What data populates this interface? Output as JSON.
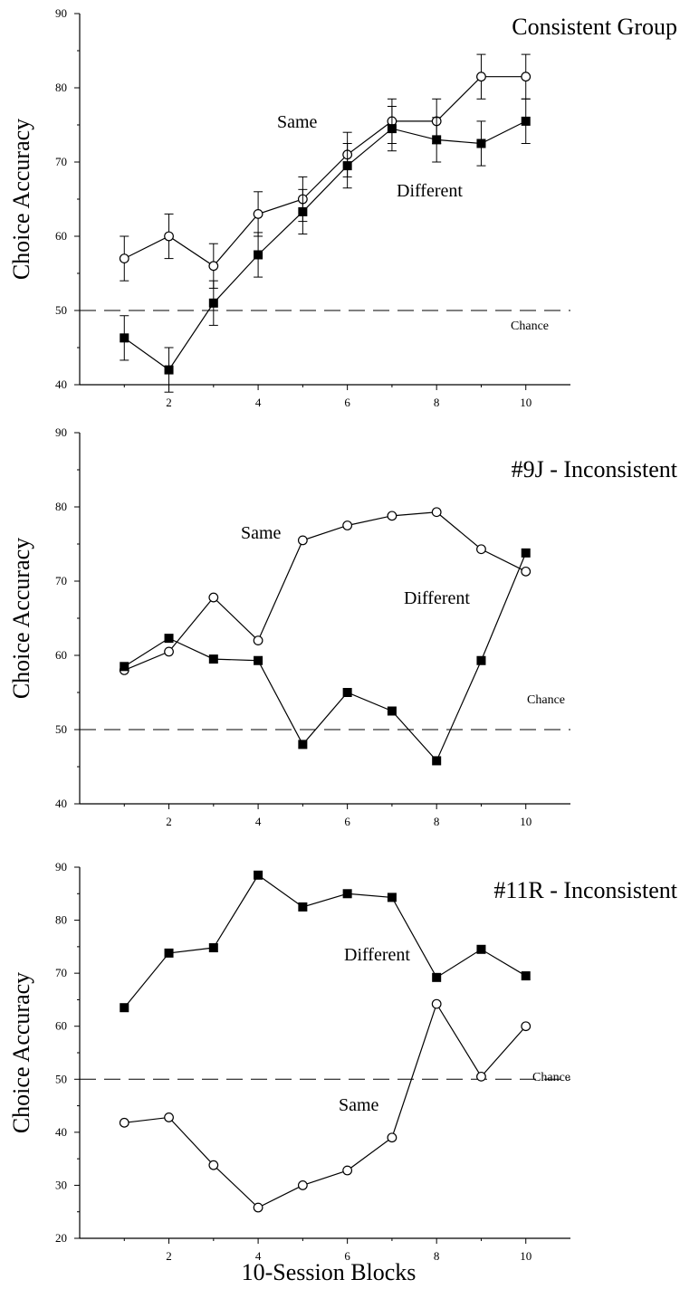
{
  "chart_data": [
    {
      "type": "line",
      "title": "Consistent Group",
      "ylabel": "Choice Accuracy",
      "ylim": [
        40,
        90
      ],
      "yticks": [
        40,
        50,
        60,
        70,
        80,
        90
      ],
      "xlim": [
        0,
        11
      ],
      "xticks": [
        2,
        4,
        6,
        8,
        10
      ],
      "chance": {
        "value": 50,
        "label": "Chance"
      },
      "series": [
        {
          "name": "Same",
          "marker": "open-circle",
          "x": [
            1,
            2,
            3,
            4,
            5,
            6,
            7,
            8,
            9,
            10
          ],
          "y": [
            57,
            60,
            56,
            63,
            65,
            71,
            75.5,
            75.5,
            81.5,
            81.5
          ],
          "err": [
            3,
            3,
            3,
            3,
            3,
            3,
            3,
            3,
            3,
            3
          ]
        },
        {
          "name": "Different",
          "marker": "filled-square",
          "x": [
            1,
            2,
            3,
            4,
            5,
            6,
            7,
            8,
            9,
            10
          ],
          "y": [
            46.3,
            42,
            51,
            57.5,
            63.3,
            69.5,
            74.5,
            73,
            72.5,
            75.5
          ],
          "err": [
            3,
            3,
            3,
            3,
            3,
            3,
            3,
            3,
            3,
            3
          ]
        }
      ]
    },
    {
      "type": "line",
      "title": "#9J - Inconsistent",
      "ylabel": "Choice Accuracy",
      "ylim": [
        40,
        90
      ],
      "yticks": [
        40,
        50,
        60,
        70,
        80,
        90
      ],
      "xlim": [
        0,
        11
      ],
      "xticks": [
        2,
        4,
        6,
        8,
        10
      ],
      "chance": {
        "value": 50,
        "label": "Chance"
      },
      "series": [
        {
          "name": "Same",
          "marker": "open-circle",
          "x": [
            1,
            2,
            3,
            4,
            5,
            6,
            7,
            8,
            9,
            10
          ],
          "y": [
            58,
            60.5,
            67.8,
            62,
            75.5,
            77.5,
            78.8,
            79.3,
            74.3,
            71.3
          ]
        },
        {
          "name": "Different",
          "marker": "filled-square",
          "x": [
            1,
            2,
            3,
            4,
            5,
            6,
            7,
            8,
            9,
            10
          ],
          "y": [
            58.5,
            62.3,
            59.5,
            59.3,
            48,
            55,
            52.5,
            45.8,
            59.3,
            73.8
          ]
        }
      ]
    },
    {
      "type": "line",
      "title": "#11R - Inconsistent",
      "ylabel": "Choice Accuracy",
      "ylim": [
        20,
        90
      ],
      "yticks": [
        20,
        30,
        40,
        50,
        60,
        70,
        80,
        90
      ],
      "xlim": [
        0,
        11
      ],
      "xticks": [
        2,
        4,
        6,
        8,
        10
      ],
      "chance": {
        "value": 50,
        "label": "Chance"
      },
      "series": [
        {
          "name": "Different",
          "marker": "filled-square",
          "x": [
            1,
            2,
            3,
            4,
            5,
            6,
            7,
            8,
            9,
            10
          ],
          "y": [
            63.5,
            73.8,
            74.8,
            88.5,
            82.5,
            85,
            84.3,
            69.2,
            74.5,
            69.5
          ]
        },
        {
          "name": "Same",
          "marker": "open-circle",
          "x": [
            1,
            2,
            3,
            4,
            5,
            6,
            7,
            8,
            9,
            10
          ],
          "y": [
            41.8,
            42.8,
            33.8,
            25.8,
            30,
            32.8,
            39,
            64.2,
            50.5,
            60
          ]
        }
      ]
    }
  ],
  "xlabel": "10-Session Blocks"
}
